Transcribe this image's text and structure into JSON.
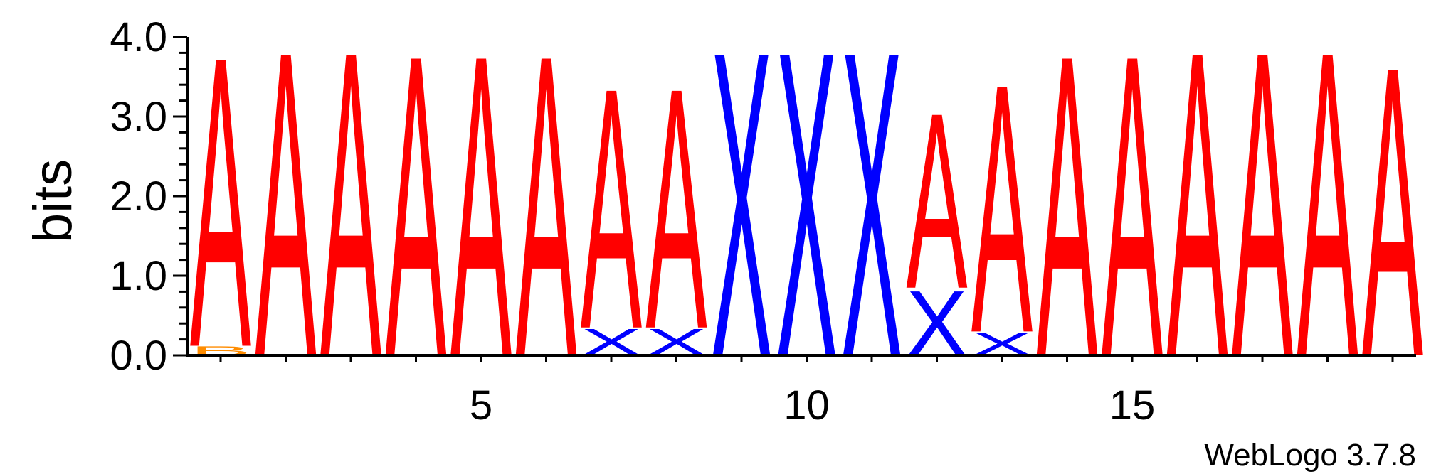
{
  "chart_data": {
    "type": "sequence-logo",
    "ylabel": "bits",
    "ylim": [
      0,
      4.0
    ],
    "y_ticks": [
      "0.0",
      "1.0",
      "2.0",
      "3.0",
      "4.0"
    ],
    "x_ticks": [
      {
        "pos": 5,
        "label": "5"
      },
      {
        "pos": 10,
        "label": "10"
      },
      {
        "pos": 15,
        "label": "15"
      }
    ],
    "positions": [
      {
        "pos": 1,
        "stack": [
          {
            "letter": "B",
            "color": "#FF8C00",
            "bits": 0.12
          },
          {
            "letter": "A",
            "color": "#FF0000",
            "bits": 3.8
          }
        ]
      },
      {
        "pos": 2,
        "stack": [
          {
            "letter": "A",
            "color": "#FF0000",
            "bits": 4.0
          }
        ]
      },
      {
        "pos": 3,
        "stack": [
          {
            "letter": "A",
            "color": "#FF0000",
            "bits": 4.0
          }
        ]
      },
      {
        "pos": 4,
        "stack": [
          {
            "letter": "A",
            "color": "#FF0000",
            "bits": 3.95
          }
        ]
      },
      {
        "pos": 5,
        "stack": [
          {
            "letter": "A",
            "color": "#FF0000",
            "bits": 3.95
          }
        ]
      },
      {
        "pos": 6,
        "stack": [
          {
            "letter": "A",
            "color": "#FF0000",
            "bits": 3.95
          }
        ]
      },
      {
        "pos": 7,
        "stack": [
          {
            "letter": "X",
            "color": "#0000FF",
            "bits": 0.35
          },
          {
            "letter": "A",
            "color": "#FF0000",
            "bits": 3.15
          }
        ]
      },
      {
        "pos": 8,
        "stack": [
          {
            "letter": "X",
            "color": "#0000FF",
            "bits": 0.35
          },
          {
            "letter": "A",
            "color": "#FF0000",
            "bits": 3.15
          }
        ]
      },
      {
        "pos": 9,
        "stack": [
          {
            "letter": "X",
            "color": "#0000FF",
            "bits": 4.0
          }
        ]
      },
      {
        "pos": 10,
        "stack": [
          {
            "letter": "X",
            "color": "#0000FF",
            "bits": 4.0
          }
        ]
      },
      {
        "pos": 11,
        "stack": [
          {
            "letter": "X",
            "color": "#0000FF",
            "bits": 4.0
          }
        ]
      },
      {
        "pos": 12,
        "stack": [
          {
            "letter": "X",
            "color": "#0000FF",
            "bits": 0.85
          },
          {
            "letter": "A",
            "color": "#FF0000",
            "bits": 2.3
          }
        ]
      },
      {
        "pos": 13,
        "stack": [
          {
            "letter": "X",
            "color": "#0000FF",
            "bits": 0.3
          },
          {
            "letter": "A",
            "color": "#FF0000",
            "bits": 3.25
          }
        ]
      },
      {
        "pos": 14,
        "stack": [
          {
            "letter": "A",
            "color": "#FF0000",
            "bits": 3.95
          }
        ]
      },
      {
        "pos": 15,
        "stack": [
          {
            "letter": "A",
            "color": "#FF0000",
            "bits": 3.95
          }
        ]
      },
      {
        "pos": 16,
        "stack": [
          {
            "letter": "A",
            "color": "#FF0000",
            "bits": 4.0
          }
        ]
      },
      {
        "pos": 17,
        "stack": [
          {
            "letter": "A",
            "color": "#FF0000",
            "bits": 4.0
          }
        ]
      },
      {
        "pos": 18,
        "stack": [
          {
            "letter": "A",
            "color": "#FF0000",
            "bits": 4.0
          }
        ]
      },
      {
        "pos": 19,
        "stack": [
          {
            "letter": "A",
            "color": "#FF0000",
            "bits": 3.8
          }
        ]
      }
    ],
    "credit": "WebLogo 3.7.8"
  }
}
